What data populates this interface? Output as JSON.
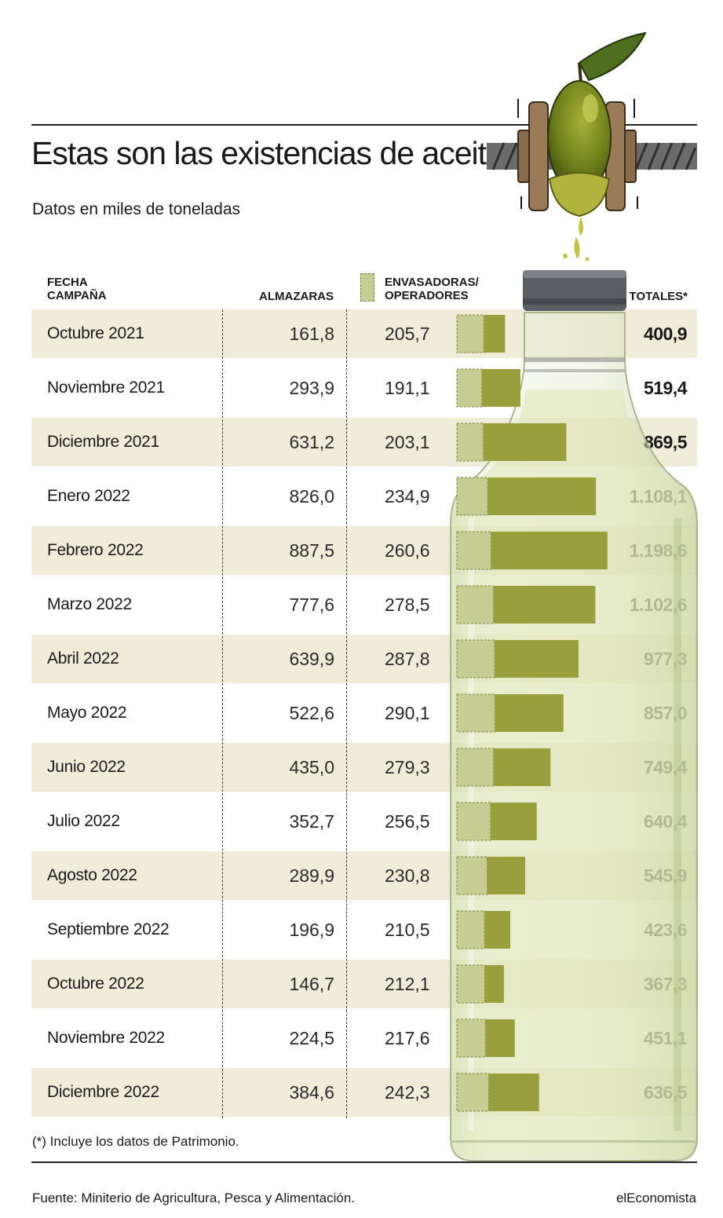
{
  "header": {
    "title": "Estas son las existencias de aceite",
    "subtitle": "Datos en miles de toneladas"
  },
  "columns": {
    "fecha_line1": "FECHA",
    "fecha_line2": "CAMPAÑA",
    "almazaras": "ALMAZARAS",
    "envasadoras_line1": "ENVASADORAS/",
    "envasadoras_line2": "OPERADORES",
    "totales": "TOTALES*"
  },
  "chart_data": {
    "type": "table",
    "series": [
      {
        "name": "ALMAZARAS"
      },
      {
        "name": "ENVASADORAS/OPERADORES"
      },
      {
        "name": "TOTALES*"
      }
    ],
    "rows": [
      {
        "fecha": "Octubre 2021",
        "almazaras": "161,8",
        "envasadoras": "205,7",
        "total": "400,9",
        "alm_value": 161.8,
        "env_value": 205.7
      },
      {
        "fecha": "Noviembre 2021",
        "almazaras": "293,9",
        "envasadoras": "191,1",
        "total": "519,4",
        "alm_value": 293.9,
        "env_value": 191.1
      },
      {
        "fecha": "Diciembre 2021",
        "almazaras": "631,2",
        "envasadoras": "203,1",
        "total": "869,5",
        "alm_value": 631.2,
        "env_value": 203.1
      },
      {
        "fecha": "Enero 2022",
        "almazaras": "826,0",
        "envasadoras": "234,9",
        "total": "1.108,1",
        "alm_value": 826.0,
        "env_value": 234.9
      },
      {
        "fecha": "Febrero 2022",
        "almazaras": "887,5",
        "envasadoras": "260,6",
        "total": "1.198,6",
        "alm_value": 887.5,
        "env_value": 260.6
      },
      {
        "fecha": "Marzo 2022",
        "almazaras": "777,6",
        "envasadoras": "278,5",
        "total": "1.102,6",
        "alm_value": 777.6,
        "env_value": 278.5
      },
      {
        "fecha": "Abril 2022",
        "almazaras": "639,9",
        "envasadoras": "287,8",
        "total": "977,3",
        "alm_value": 639.9,
        "env_value": 287.8
      },
      {
        "fecha": "Mayo 2022",
        "almazaras": "522,6",
        "envasadoras": "290,1",
        "total": "857,0",
        "alm_value": 522.6,
        "env_value": 290.1
      },
      {
        "fecha": "Junio 2022",
        "almazaras": "435,0",
        "envasadoras": "279,3",
        "total": "749,4",
        "alm_value": 435.0,
        "env_value": 279.3
      },
      {
        "fecha": "Julio 2022",
        "almazaras": "352,7",
        "envasadoras": "256,5",
        "total": "640,4",
        "alm_value": 352.7,
        "env_value": 256.5
      },
      {
        "fecha": "Agosto 2022",
        "almazaras": "289,9",
        "envasadoras": "230,8",
        "total": "545,9",
        "alm_value": 289.9,
        "env_value": 230.8
      },
      {
        "fecha": "Septiembre 2022",
        "almazaras": "196,9",
        "envasadoras": "210,5",
        "total": "423,6",
        "alm_value": 196.9,
        "env_value": 210.5
      },
      {
        "fecha": "Octubre 2022",
        "almazaras": "146,7",
        "envasadoras": "212,1",
        "total": "367,3",
        "alm_value": 146.7,
        "env_value": 212.1
      },
      {
        "fecha": "Noviembre 2022",
        "almazaras": "224,5",
        "envasadoras": "217,6",
        "total": "451,1",
        "alm_value": 224.5,
        "env_value": 217.6
      },
      {
        "fecha": "Diciembre 2022",
        "almazaras": "384,6",
        "envasadoras": "242,3",
        "total": "636,5",
        "alm_value": 384.6,
        "env_value": 242.3
      }
    ]
  },
  "colors": {
    "almazaras_bar": "#97a03c",
    "envasadoras_bar": "#c6cd93",
    "row_shade": "#efedd9",
    "olive": "#6f7f1e",
    "leaf": "#4e6e1f"
  },
  "icons": {
    "illustration": "olive-press-bottle-icon"
  },
  "footer": {
    "note": "(*) Incluye los datos de Patrimonio.",
    "source": "Fuente: Miniterio de Agricultura, Pesca y Alimentación.",
    "brand": "elEconomista"
  }
}
